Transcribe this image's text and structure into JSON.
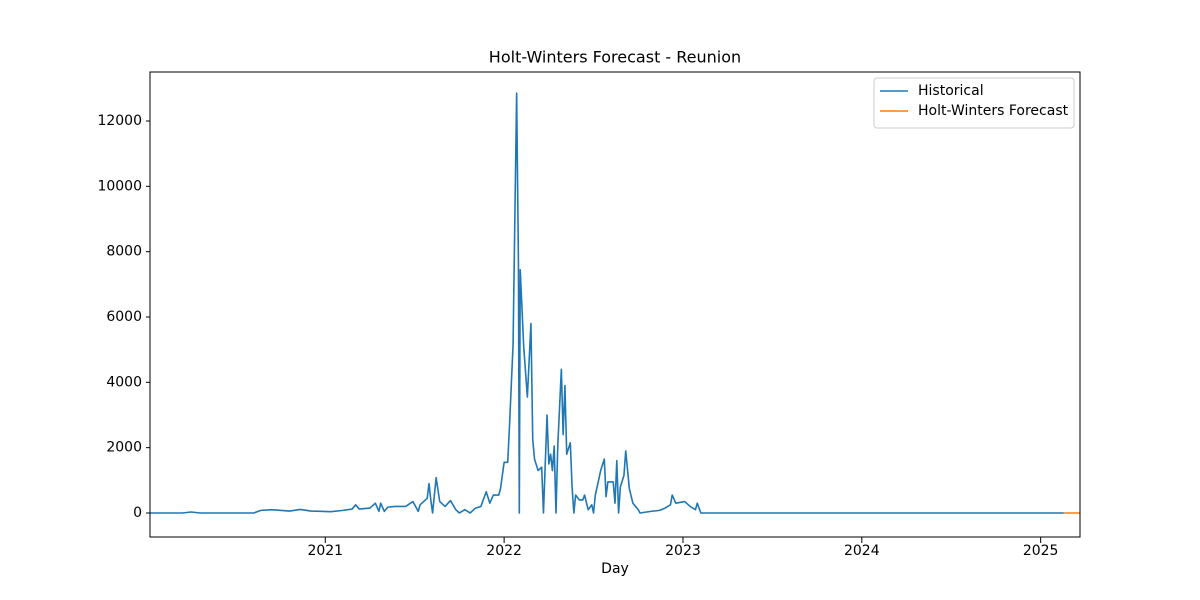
{
  "chart_data": {
    "type": "line",
    "title": "Holt-Winters Forecast - Reunion",
    "x_label": "Day",
    "xlim": [
      2020.02,
      2025.22
    ],
    "xticks": [
      2021,
      2022,
      2023,
      2024,
      2025
    ],
    "ylim": [
      -735,
      13500
    ],
    "yticks": [
      0,
      2000,
      4000,
      6000,
      8000,
      10000,
      12000
    ],
    "grid": false,
    "legend": "upper right",
    "series": [
      {
        "name": "Historical",
        "color": "#1f77b4",
        "x": [
          2020.02,
          2020.2,
          2020.25,
          2020.3,
          2020.6,
          2020.64,
          2020.7,
          2020.8,
          2020.86,
          2020.92,
          2020.97,
          2021.03,
          2021.1,
          2021.15,
          2021.17,
          2021.19,
          2021.25,
          2021.28,
          2021.3,
          2021.31,
          2021.33,
          2021.35,
          2021.39,
          2021.45,
          2021.49,
          2021.52,
          2021.53,
          2021.57,
          2021.58,
          2021.59,
          2021.6,
          2021.62,
          2021.64,
          2021.67,
          2021.7,
          2021.73,
          2021.75,
          2021.78,
          2021.81,
          2021.84,
          2021.87,
          2021.9,
          2021.92,
          2021.94,
          2021.97,
          2021.98,
          2022.0,
          2022.02,
          2022.03,
          2022.05,
          2022.07,
          2022.08,
          2022.085,
          2022.09,
          2022.11,
          2022.13,
          2022.15,
          2022.16,
          2022.17,
          2022.19,
          2022.21,
          2022.22,
          2022.24,
          2022.25,
          2022.26,
          2022.27,
          2022.28,
          2022.29,
          2022.3,
          2022.32,
          2022.33,
          2022.34,
          2022.35,
          2022.37,
          2022.38,
          2022.39,
          2022.4,
          2022.42,
          2022.44,
          2022.45,
          2022.47,
          2022.49,
          2022.5,
          2022.51,
          2022.54,
          2022.56,
          2022.57,
          2022.58,
          2022.61,
          2022.62,
          2022.63,
          2022.64,
          2022.65,
          2022.67,
          2022.68,
          2022.7,
          2022.72,
          2022.75,
          2022.76,
          2022.82,
          2022.87,
          2022.9,
          2022.93,
          2022.94,
          2022.96,
          2023.01,
          2023.04,
          2023.07,
          2023.08,
          2023.1,
          2025.13
        ],
        "values": [
          0,
          0,
          30,
          0,
          0,
          80,
          100,
          60,
          110,
          60,
          50,
          40,
          80,
          120,
          250,
          120,
          150,
          300,
          50,
          300,
          50,
          180,
          200,
          200,
          350,
          50,
          250,
          450,
          900,
          400,
          0,
          1080,
          350,
          200,
          380,
          100,
          0,
          100,
          0,
          150,
          200,
          650,
          300,
          550,
          550,
          750,
          1550,
          1550,
          2650,
          5150,
          12850,
          7700,
          0,
          7450,
          5050,
          3550,
          5800,
          2250,
          1650,
          1300,
          1400,
          0,
          3000,
          1500,
          1800,
          1300,
          2050,
          0,
          2050,
          4400,
          2400,
          3900,
          1800,
          2150,
          800,
          0,
          550,
          400,
          400,
          550,
          100,
          250,
          0,
          550,
          1300,
          1650,
          500,
          950,
          950,
          300,
          1600,
          0,
          800,
          1150,
          1900,
          750,
          300,
          100,
          0,
          50,
          80,
          150,
          250,
          550,
          300,
          350,
          200,
          100,
          300,
          0,
          0
        ]
      },
      {
        "name": "Holt-Winters Forecast",
        "color": "#ff7f0e",
        "x": [
          2025.13,
          2025.22
        ],
        "values": [
          0,
          0
        ]
      }
    ]
  }
}
